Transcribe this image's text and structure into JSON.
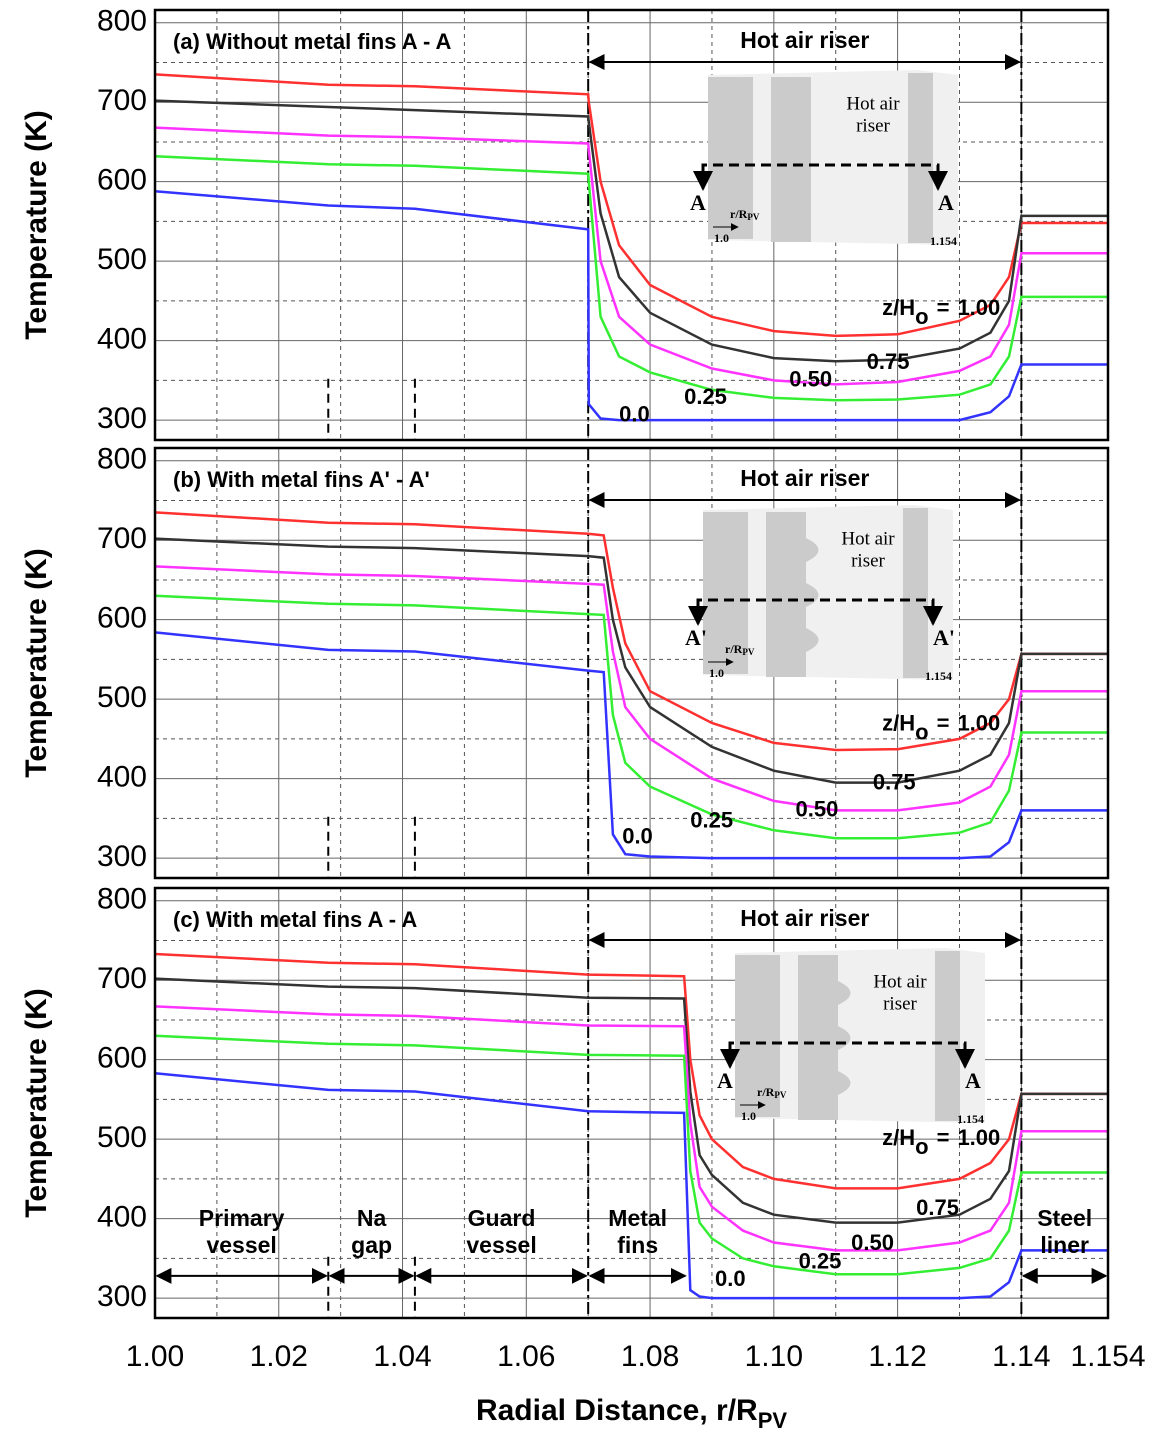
{
  "chart_data": [
    {
      "type": "line",
      "title": "(a) Without metal fins A - A",
      "ylabel": "Temperature (K)",
      "riser_label": "Hot air riser",
      "riser": [
        1.07,
        1.14
      ],
      "markers": [
        1.028,
        1.042
      ],
      "curve_label": {
        "prefix": "z/H",
        "sub": "o",
        "eq": "="
      },
      "inset": {
        "text": [
          "Hot air",
          "riser"
        ],
        "section": [
          "A",
          "A"
        ],
        "axis": "r/R",
        "axis_sub": "PV",
        "start": "1.0",
        "end": "1.154",
        "fins": false
      },
      "x": [
        1.0,
        1.028,
        1.042,
        1.07,
        1.0701,
        1.072,
        1.075,
        1.08,
        1.09,
        1.1,
        1.11,
        1.12,
        1.13,
        1.135,
        1.138,
        1.14,
        1.154
      ],
      "series": [
        {
          "name": "1.00",
          "color": "#ff3030",
          "values": [
            735,
            722,
            720,
            710,
            700,
            600,
            520,
            470,
            430,
            412,
            406,
            408,
            425,
            445,
            480,
            548,
            548
          ]
        },
        {
          "name": "0.75",
          "color": "#333333",
          "values": [
            702,
            694,
            690,
            682,
            675,
            560,
            480,
            435,
            395,
            378,
            374,
            376,
            390,
            410,
            450,
            557,
            557
          ]
        },
        {
          "name": "0.50",
          "color": "#ff33ff",
          "values": [
            668,
            658,
            656,
            648,
            640,
            500,
            430,
            395,
            365,
            350,
            345,
            348,
            362,
            380,
            420,
            510,
            510
          ]
        },
        {
          "name": "0.25",
          "color": "#33ee33",
          "values": [
            632,
            622,
            620,
            610,
            600,
            430,
            380,
            360,
            338,
            328,
            325,
            326,
            332,
            345,
            380,
            455,
            455
          ]
        },
        {
          "name": "0.0",
          "color": "#3333ff",
          "values": [
            588,
            570,
            566,
            540,
            320,
            302,
            300,
            300,
            300,
            300,
            300,
            300,
            300,
            310,
            330,
            370,
            370
          ]
        }
      ],
      "xlim": [
        1.0,
        1.154
      ],
      "ylim": [
        275,
        816
      ],
      "xticks": [
        {
          "value": 1.0,
          "label": "1.00"
        },
        1.02,
        1.04,
        1.06,
        1.08,
        {
          "value": 1.1,
          "label": "1.10"
        },
        1.12,
        1.14,
        1.154
      ],
      "yticks": [
        300,
        400,
        500,
        600,
        700,
        800
      ],
      "grid": true
    },
    {
      "type": "line",
      "title": "(b) With metal fins A' - A'",
      "ylabel": "Temperature (K)",
      "riser_label": "Hot air riser",
      "riser": [
        1.07,
        1.14
      ],
      "markers": [
        1.028,
        1.042
      ],
      "curve_label": {
        "prefix": "z/H",
        "sub": "o",
        "eq": "="
      },
      "inset": {
        "text": [
          "Hot air",
          "riser"
        ],
        "section": [
          "A'",
          "A'"
        ],
        "axis": "r/R",
        "axis_sub": "PV",
        "start": "1.0",
        "end": "1.154",
        "fins": true
      },
      "x": [
        1.0,
        1.028,
        1.042,
        1.07,
        1.0725,
        1.074,
        1.076,
        1.08,
        1.09,
        1.1,
        1.11,
        1.12,
        1.13,
        1.135,
        1.138,
        1.14,
        1.154
      ],
      "series": [
        {
          "name": "1.00",
          "color": "#ff3030",
          "values": [
            735,
            722,
            720,
            708,
            706,
            640,
            570,
            510,
            470,
            445,
            436,
            437,
            450,
            470,
            500,
            557,
            557
          ]
        },
        {
          "name": "0.75",
          "color": "#333333",
          "values": [
            702,
            692,
            690,
            680,
            678,
            600,
            540,
            490,
            440,
            410,
            395,
            395,
            410,
            430,
            470,
            557,
            557
          ]
        },
        {
          "name": "0.50",
          "color": "#ff33ff",
          "values": [
            667,
            657,
            655,
            645,
            644,
            560,
            490,
            450,
            400,
            372,
            360,
            360,
            370,
            390,
            430,
            510,
            510
          ]
        },
        {
          "name": "0.25",
          "color": "#33ee33",
          "values": [
            630,
            620,
            618,
            607,
            606,
            480,
            420,
            390,
            355,
            335,
            325,
            325,
            332,
            345,
            385,
            458,
            458
          ]
        },
        {
          "name": "0.0",
          "color": "#3333ff",
          "values": [
            584,
            562,
            560,
            536,
            534,
            330,
            305,
            302,
            300,
            300,
            300,
            300,
            300,
            302,
            320,
            360,
            360
          ]
        }
      ],
      "xlim": [
        1.0,
        1.154
      ],
      "ylim": [
        275,
        816
      ],
      "xticks": [
        {
          "value": 1.0,
          "label": "1.00"
        },
        1.02,
        1.04,
        1.06,
        1.08,
        {
          "value": 1.1,
          "label": "1.10"
        },
        1.12,
        1.14,
        1.154
      ],
      "yticks": [
        300,
        400,
        500,
        600,
        700,
        800
      ],
      "grid": true
    },
    {
      "type": "line",
      "title": "(c) With metal fins A - A",
      "ylabel": "Temperature (K)",
      "xlabel": "Radial Distance, r/R",
      "xlabel_sub": "PV",
      "riser_label": "Hot air riser",
      "riser": [
        1.07,
        1.14
      ],
      "markers": [
        1.028,
        1.042
      ],
      "curve_label": {
        "prefix": "z/H",
        "sub": "o",
        "eq": "="
      },
      "inset": {
        "text": [
          "Hot air",
          "riser"
        ],
        "section": [
          "A",
          "A"
        ],
        "axis": "r/R",
        "axis_sub": "PV",
        "start": "1.0",
        "end": "1.154",
        "fins": true
      },
      "regions": [
        {
          "label": [
            "Primary",
            "vessel"
          ],
          "from": 1.0,
          "to": 1.028
        },
        {
          "label": [
            "Na",
            "gap"
          ],
          "from": 1.028,
          "to": 1.042
        },
        {
          "label": [
            "Guard",
            "vessel"
          ],
          "from": 1.042,
          "to": 1.07
        },
        {
          "label": [
            "Metal",
            "fins"
          ],
          "from": 1.07,
          "to": 1.086
        },
        {
          "label": [
            "Steel",
            "liner"
          ],
          "from": 1.14,
          "to": 1.154
        }
      ],
      "x": [
        1.0,
        1.028,
        1.042,
        1.07,
        1.0855,
        1.0865,
        1.088,
        1.09,
        1.095,
        1.1,
        1.11,
        1.12,
        1.13,
        1.135,
        1.138,
        1.14,
        1.154
      ],
      "series": [
        {
          "name": "1.00",
          "color": "#ff3030",
          "values": [
            733,
            722,
            720,
            707,
            705,
            600,
            530,
            500,
            465,
            450,
            438,
            438,
            450,
            470,
            500,
            557,
            557
          ]
        },
        {
          "name": "0.75",
          "color": "#333333",
          "values": [
            702,
            692,
            690,
            678,
            677,
            560,
            480,
            455,
            420,
            405,
            395,
            395,
            405,
            425,
            460,
            557,
            557
          ]
        },
        {
          "name": "0.50",
          "color": "#ff33ff",
          "values": [
            667,
            657,
            655,
            643,
            642,
            520,
            440,
            415,
            385,
            370,
            360,
            360,
            370,
            385,
            420,
            510,
            510
          ]
        },
        {
          "name": "0.25",
          "color": "#33ee33",
          "values": [
            630,
            620,
            618,
            606,
            605,
            460,
            395,
            375,
            350,
            340,
            330,
            330,
            338,
            350,
            385,
            458,
            458
          ]
        },
        {
          "name": "0.0",
          "color": "#3333ff",
          "values": [
            583,
            562,
            560,
            535,
            533,
            310,
            302,
            300,
            300,
            300,
            300,
            300,
            300,
            302,
            320,
            360,
            360
          ]
        }
      ],
      "xlim": [
        1.0,
        1.154
      ],
      "ylim": [
        275,
        816
      ],
      "xticks": [
        {
          "value": 1.0,
          "label": "1.00"
        },
        1.02,
        1.04,
        1.06,
        1.08,
        {
          "value": 1.1,
          "label": "1.10"
        },
        1.12,
        1.14,
        1.154
      ],
      "yticks": [
        300,
        400,
        500,
        600,
        700,
        800
      ],
      "grid": true
    }
  ]
}
